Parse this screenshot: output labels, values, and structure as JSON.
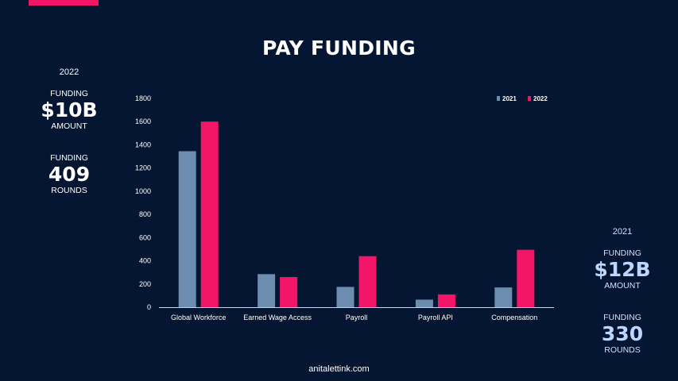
{
  "title": "PAY FUNDING",
  "footer": "anitalettink.com",
  "stats_2022": {
    "year": "2022",
    "amount_label_top": "FUNDING",
    "amount_value": "$10B",
    "amount_label_bottom": "AMOUNT",
    "rounds_label_top": "FUNDING",
    "rounds_value": "409",
    "rounds_label_bottom": "ROUNDS"
  },
  "stats_2021": {
    "year": "2021",
    "amount_label_top": "FUNDING",
    "amount_value": "$12B",
    "amount_label_bottom": "AMOUNT",
    "rounds_label_top": "FUNDING",
    "rounds_value": "330",
    "rounds_label_bottom": "ROUNDS"
  },
  "colors": {
    "background": "#041631",
    "accent": "#f31668",
    "series_2021": "#6d8db0",
    "series_2022": "#f31668"
  },
  "chart_data": {
    "type": "bar",
    "categories": [
      "Global Workforce",
      "Earned Wage Access",
      "Payroll",
      "Payroll API",
      "Compensation"
    ],
    "series": [
      {
        "name": "2021",
        "values": [
          1345,
          285,
          175,
          65,
          170
        ]
      },
      {
        "name": "2022",
        "values": [
          1600,
          260,
          440,
          110,
          495
        ]
      }
    ],
    "yticks": [
      0,
      200,
      400,
      600,
      800,
      1000,
      1200,
      1400,
      1600,
      1800
    ],
    "ylim": [
      0,
      1800
    ],
    "legend_position": "top-right",
    "grid": false
  }
}
